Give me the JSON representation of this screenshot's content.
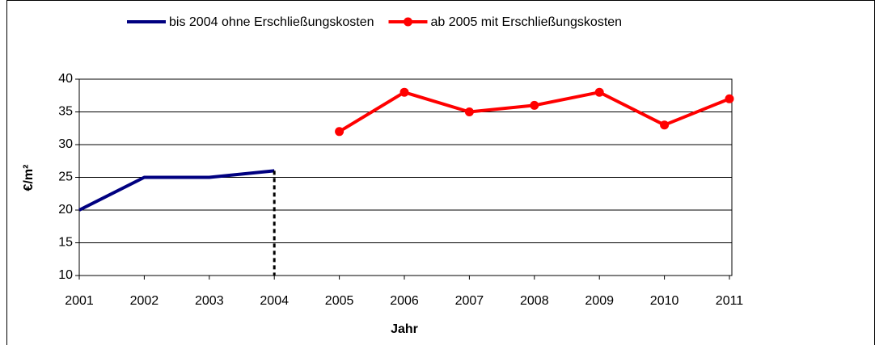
{
  "chart_data": {
    "type": "line",
    "x_label": "Jahr",
    "y_label": "€/m²",
    "x": [
      2001,
      2002,
      2003,
      2004,
      2005,
      2006,
      2007,
      2008,
      2009,
      2010,
      2011
    ],
    "xlim": [
      2001,
      2011
    ],
    "xticks": [
      2001,
      2002,
      2003,
      2004,
      2005,
      2006,
      2007,
      2008,
      2009,
      2010,
      2011
    ],
    "ylim": [
      10,
      40
    ],
    "yticks": [
      10,
      15,
      20,
      25,
      30,
      35,
      40
    ],
    "grid": true,
    "legend": "top",
    "series": [
      {
        "name": "bis 2004 ohne Erschließungskosten",
        "color": "#000080",
        "markers": false,
        "drop_line": true,
        "values": [
          20,
          25,
          25,
          26,
          null,
          null,
          null,
          null,
          null,
          null,
          null
        ]
      },
      {
        "name": "ab 2005 mit Erschließungskosten",
        "color": "#ff0000",
        "markers": true,
        "drop_line": false,
        "values": [
          null,
          null,
          null,
          null,
          32,
          38,
          35,
          36,
          38,
          33,
          37
        ]
      }
    ]
  }
}
